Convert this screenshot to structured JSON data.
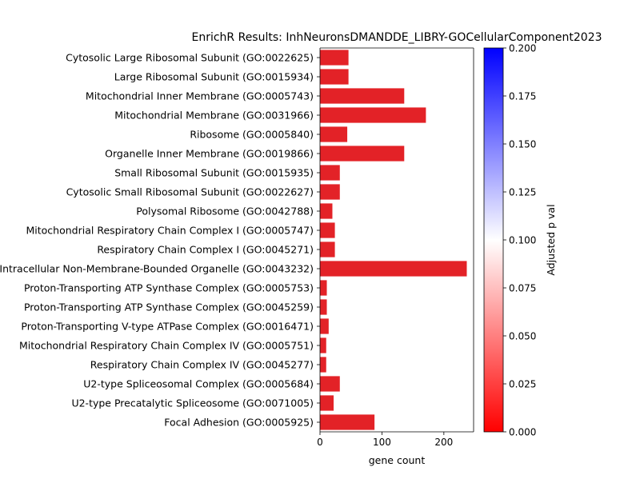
{
  "chart_data": {
    "type": "bar",
    "orientation": "horizontal",
    "title": "EnrichR Results: InhNeuronsDMANDDE_LIBRY-GOCellularComponent2023",
    "xlabel": "gene count",
    "ylabel": "",
    "xlim": [
      0,
      248
    ],
    "xticks": [
      0,
      100,
      200
    ],
    "grid": false,
    "categories": [
      "Cytosolic Large Ribosomal Subunit (GO:0022625)",
      "Large Ribosomal Subunit (GO:0015934)",
      "Mitochondrial Inner Membrane (GO:0005743)",
      "Mitochondrial Membrane (GO:0031966)",
      "Ribosome (GO:0005840)",
      "Organelle Inner Membrane (GO:0019866)",
      "Small Ribosomal Subunit (GO:0015935)",
      "Cytosolic Small Ribosomal Subunit (GO:0022627)",
      "Polysomal Ribosome (GO:0042788)",
      "Mitochondrial Respiratory Chain Complex I (GO:0005747)",
      "Respiratory Chain Complex I (GO:0045271)",
      "Intracellular Non-Membrane-Bounded Organelle (GO:0043232)",
      "Proton-Transporting ATP Synthase Complex (GO:0005753)",
      "Proton-Transporting ATP Synthase Complex (GO:0045259)",
      "Proton-Transporting V-type ATPase Complex (GO:0016471)",
      "Mitochondrial Respiratory Chain Complex IV (GO:0005751)",
      "Respiratory Chain Complex IV (GO:0045277)",
      "U2-type Spliceosomal Complex (GO:0005684)",
      "U2-type Precatalytic Spliceosome (GO:0071005)",
      "Focal Adhesion (GO:0005925)"
    ],
    "values": [
      46,
      46,
      136,
      171,
      44,
      136,
      32,
      32,
      20,
      24,
      24,
      237,
      11,
      11,
      14,
      10,
      10,
      32,
      22,
      88
    ],
    "bar_color": "#e32227",
    "colorbar": {
      "label": "Adjusted p val",
      "min": 0.0,
      "max": 0.2,
      "ticks": [
        "0.000",
        "0.025",
        "0.050",
        "0.075",
        "0.100",
        "0.125",
        "0.150",
        "0.175",
        "0.200"
      ],
      "colors": [
        "#ff0000",
        "#ffffff",
        "#0000ff"
      ]
    }
  }
}
